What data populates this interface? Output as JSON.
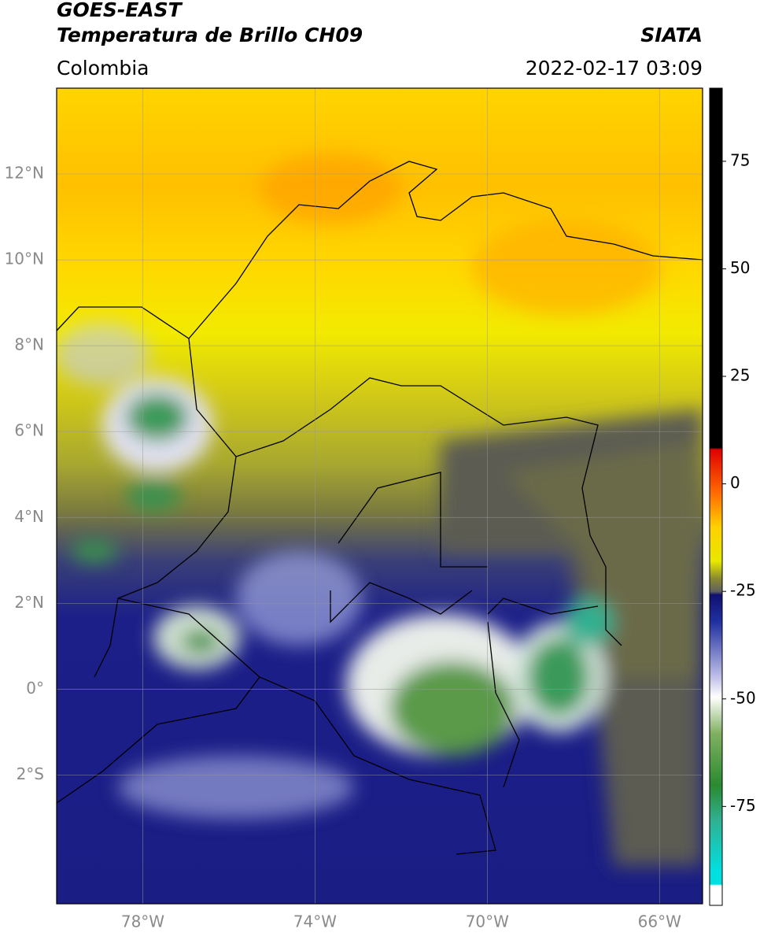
{
  "header": {
    "title": "GOES-EAST",
    "subtitle": "Temperatura de Brillo CH09",
    "region": "Colombia",
    "source": "SIATA",
    "datetime": "2022-02-17 03:09"
  },
  "map": {
    "lon_range": [
      -80,
      -65
    ],
    "lat_range": [
      -5,
      14
    ],
    "lon_ticks": [
      {
        "value": -78,
        "label": "78°W"
      },
      {
        "value": -74,
        "label": "74°W"
      },
      {
        "value": -70,
        "label": "70°W"
      },
      {
        "value": -66,
        "label": "66°W"
      }
    ],
    "lat_ticks": [
      {
        "value": 12,
        "label": "12°N"
      },
      {
        "value": 10,
        "label": "10°N"
      },
      {
        "value": 8,
        "label": "8°N"
      },
      {
        "value": 6,
        "label": "6°N"
      },
      {
        "value": 4,
        "label": "4°N"
      },
      {
        "value": 2,
        "label": "2°N"
      },
      {
        "value": 0,
        "label": "0°"
      },
      {
        "value": -2,
        "label": "2°S"
      }
    ]
  },
  "colorbar": {
    "range": [
      -98,
      92
    ],
    "ticks": [
      75,
      50,
      25,
      0,
      -25,
      -50,
      -75
    ]
  }
}
